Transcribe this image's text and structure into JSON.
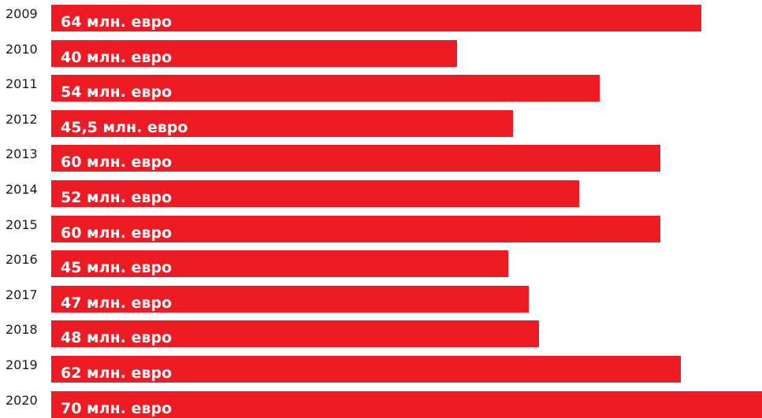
{
  "chart_data": {
    "type": "bar",
    "orientation": "horizontal",
    "categories": [
      "2009",
      "2010",
      "2011",
      "2012",
      "2013",
      "2014",
      "2015",
      "2016",
      "2017",
      "2018",
      "2019",
      "2020"
    ],
    "values": [
      64,
      40,
      54,
      45.5,
      60,
      52,
      60,
      45,
      47,
      48,
      62,
      70
    ],
    "value_labels": [
      "64 млн. евро",
      "40 млн. евро",
      "54 млн. евро",
      "45,5 млн. евро",
      "60 млн. евро",
      "52 млн. евро",
      "60 млн. евро",
      "45 млн. евро",
      "47 млн. евро",
      "48 млн. евро",
      "62 млн. евро",
      "70 млн. евро"
    ],
    "title": "",
    "xlabel": "",
    "ylabel": "",
    "xlim": [
      0,
      70
    ],
    "grid": false,
    "legend": "none",
    "bar_color": "#ed1c24",
    "label_color": "#ffffff"
  }
}
